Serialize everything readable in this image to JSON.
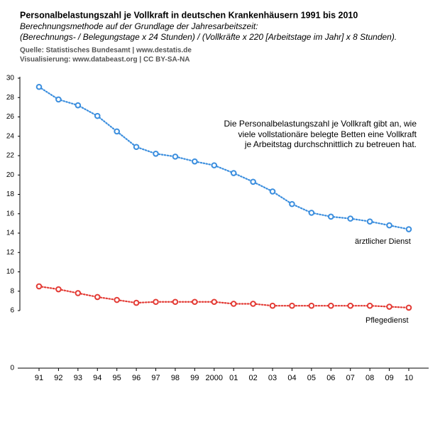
{
  "chart_data": {
    "type": "line",
    "title": "Personalbelastungszahl je Vollkraft in deutschen Krankenhäusern 1991 bis 2010",
    "subtitle": [
      "Berechnungsmethode auf der Grundlage der Jahresarbeitszeit:",
      "(Berechnungs- / Belegungstage x 24 Stunden) / (Vollkräfte x 220 [Arbeitstage im Jahr] x 8 Stunden)."
    ],
    "source": [
      "Quelle: Statistisches Bundesamt | www.destatis.de",
      "Visualisierung: www.databeast.org | CC BY-SA-NA"
    ],
    "annotation": [
      "Die Personalbelastungszahl je Vollkraft gibt an, wie",
      "viele vollstationäre belegte Betten eine Vollkraft",
      "je Arbeitstag durchschnittlich zu betreuen hat."
    ],
    "categories": [
      "91",
      "92",
      "93",
      "94",
      "95",
      "96",
      "97",
      "98",
      "99",
      "2000",
      "01",
      "02",
      "03",
      "04",
      "05",
      "06",
      "07",
      "08",
      "09",
      "10"
    ],
    "series": [
      {
        "name": "ärztlicher Dienst",
        "color": "#3b8ede",
        "values": [
          29.1,
          27.8,
          27.2,
          26.1,
          24.5,
          22.9,
          22.2,
          21.9,
          21.4,
          21.0,
          20.2,
          19.3,
          18.3,
          17.0,
          16.1,
          15.7,
          15.5,
          15.2,
          14.8,
          14.4
        ]
      },
      {
        "name": "Pflegedienst",
        "color": "#e33b35",
        "values": [
          8.5,
          8.2,
          7.8,
          7.4,
          7.1,
          6.8,
          6.9,
          6.9,
          6.9,
          6.9,
          6.7,
          6.7,
          6.5,
          6.5,
          6.5,
          6.5,
          6.5,
          6.5,
          6.4,
          6.3
        ]
      }
    ],
    "ylim": [
      0,
      30
    ],
    "yticks": [
      0,
      6,
      8,
      10,
      12,
      14,
      16,
      18,
      20,
      22,
      24,
      26,
      28,
      30
    ]
  }
}
